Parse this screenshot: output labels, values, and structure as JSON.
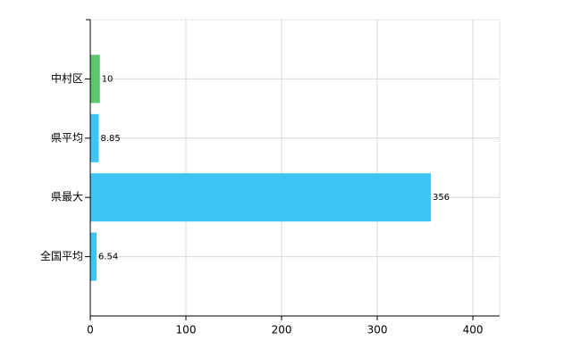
{
  "chart_data": {
    "type": "bar",
    "orientation": "horizontal",
    "categories": [
      "中村区",
      "県平均",
      "県最大",
      "全国平均"
    ],
    "values": [
      10,
      8.85,
      356,
      6.54
    ],
    "colors": [
      "#5bc86e",
      "#3dc4f5",
      "#3dc4f5",
      "#3dc4f5"
    ],
    "xlim": [
      0,
      428
    ],
    "xticks": [
      0,
      100,
      200,
      300,
      400
    ],
    "grid": true
  }
}
